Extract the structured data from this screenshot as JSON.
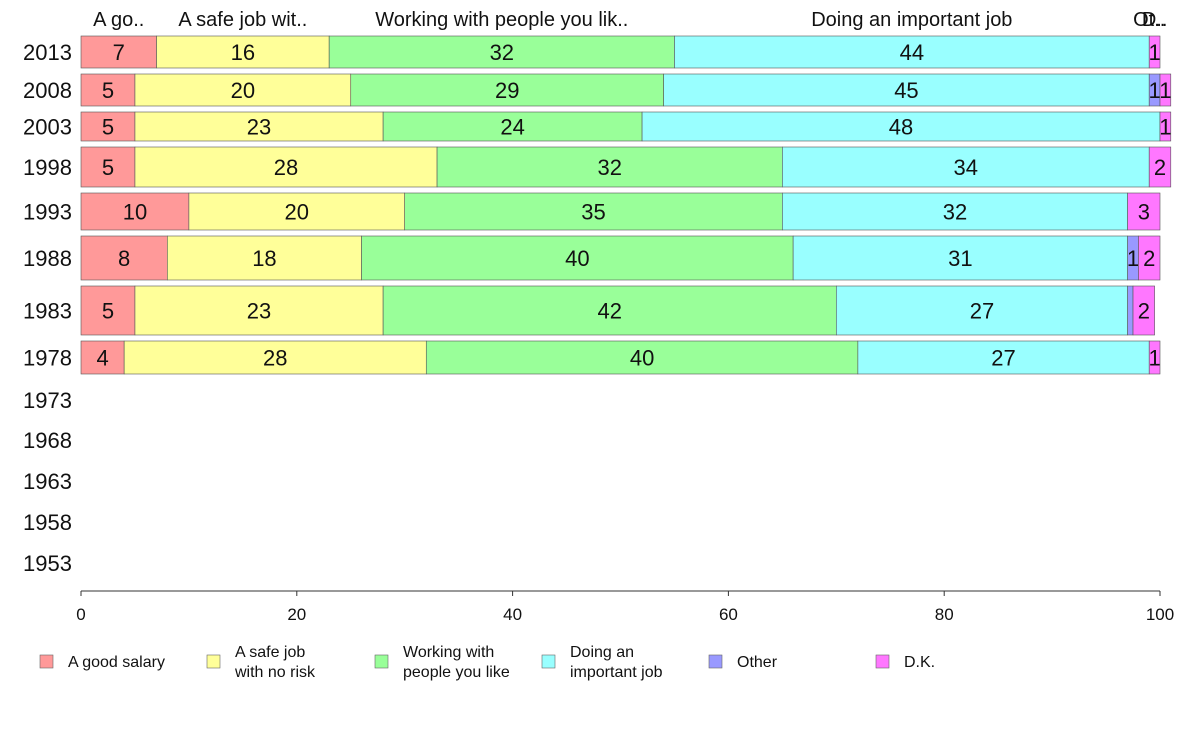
{
  "chart_data": {
    "type": "bar",
    "orientation": "horizontal",
    "stacked": true,
    "top_headers": [
      "A go..",
      "A safe job wit..",
      "Working with people you lik..",
      "Doing an important job",
      "Ot..",
      "D.."
    ],
    "categories": [
      "2013",
      "2008",
      "2003",
      "1998",
      "1993",
      "1988",
      "1983",
      "1978",
      "1973",
      "1968",
      "1963",
      "1958",
      "1953"
    ],
    "series": [
      {
        "name": "A good salary",
        "legend_lines": [
          "A good salary"
        ],
        "color": "#ff9999",
        "values": [
          7,
          5,
          5,
          5,
          10,
          8,
          5,
          4,
          null,
          null,
          null,
          null,
          null
        ]
      },
      {
        "name": "A safe job with no risk",
        "legend_lines": [
          "A safe job",
          "with no risk"
        ],
        "color": "#ffff99",
        "values": [
          16,
          20,
          23,
          28,
          20,
          18,
          23,
          28,
          null,
          null,
          null,
          null,
          null
        ]
      },
      {
        "name": "Working with people you like",
        "legend_lines": [
          "Working with",
          "people you like"
        ],
        "color": "#99ff99",
        "values": [
          32,
          29,
          24,
          32,
          35,
          40,
          42,
          40,
          null,
          null,
          null,
          null,
          null
        ]
      },
      {
        "name": "Doing an important job",
        "legend_lines": [
          "Doing an",
          "important job"
        ],
        "color": "#99ffff",
        "values": [
          44,
          45,
          48,
          34,
          32,
          31,
          27,
          27,
          null,
          null,
          null,
          null,
          null
        ]
      },
      {
        "name": "Other",
        "legend_lines": [
          "Other"
        ],
        "color": "#9999ff",
        "values": [
          0,
          1,
          0,
          0,
          0,
          1,
          0.5,
          0,
          null,
          null,
          null,
          null,
          null
        ]
      },
      {
        "name": "D.K.",
        "legend_lines": [
          "D.K."
        ],
        "color": "#ff77ff",
        "values": [
          1,
          1,
          1,
          2,
          3,
          2,
          2,
          1,
          null,
          null,
          null,
          null,
          null
        ]
      }
    ],
    "xlim": [
      0,
      100
    ],
    "xticks": [
      0,
      20,
      40,
      60,
      80,
      100
    ],
    "grid": false,
    "legend_position": "bottom"
  }
}
